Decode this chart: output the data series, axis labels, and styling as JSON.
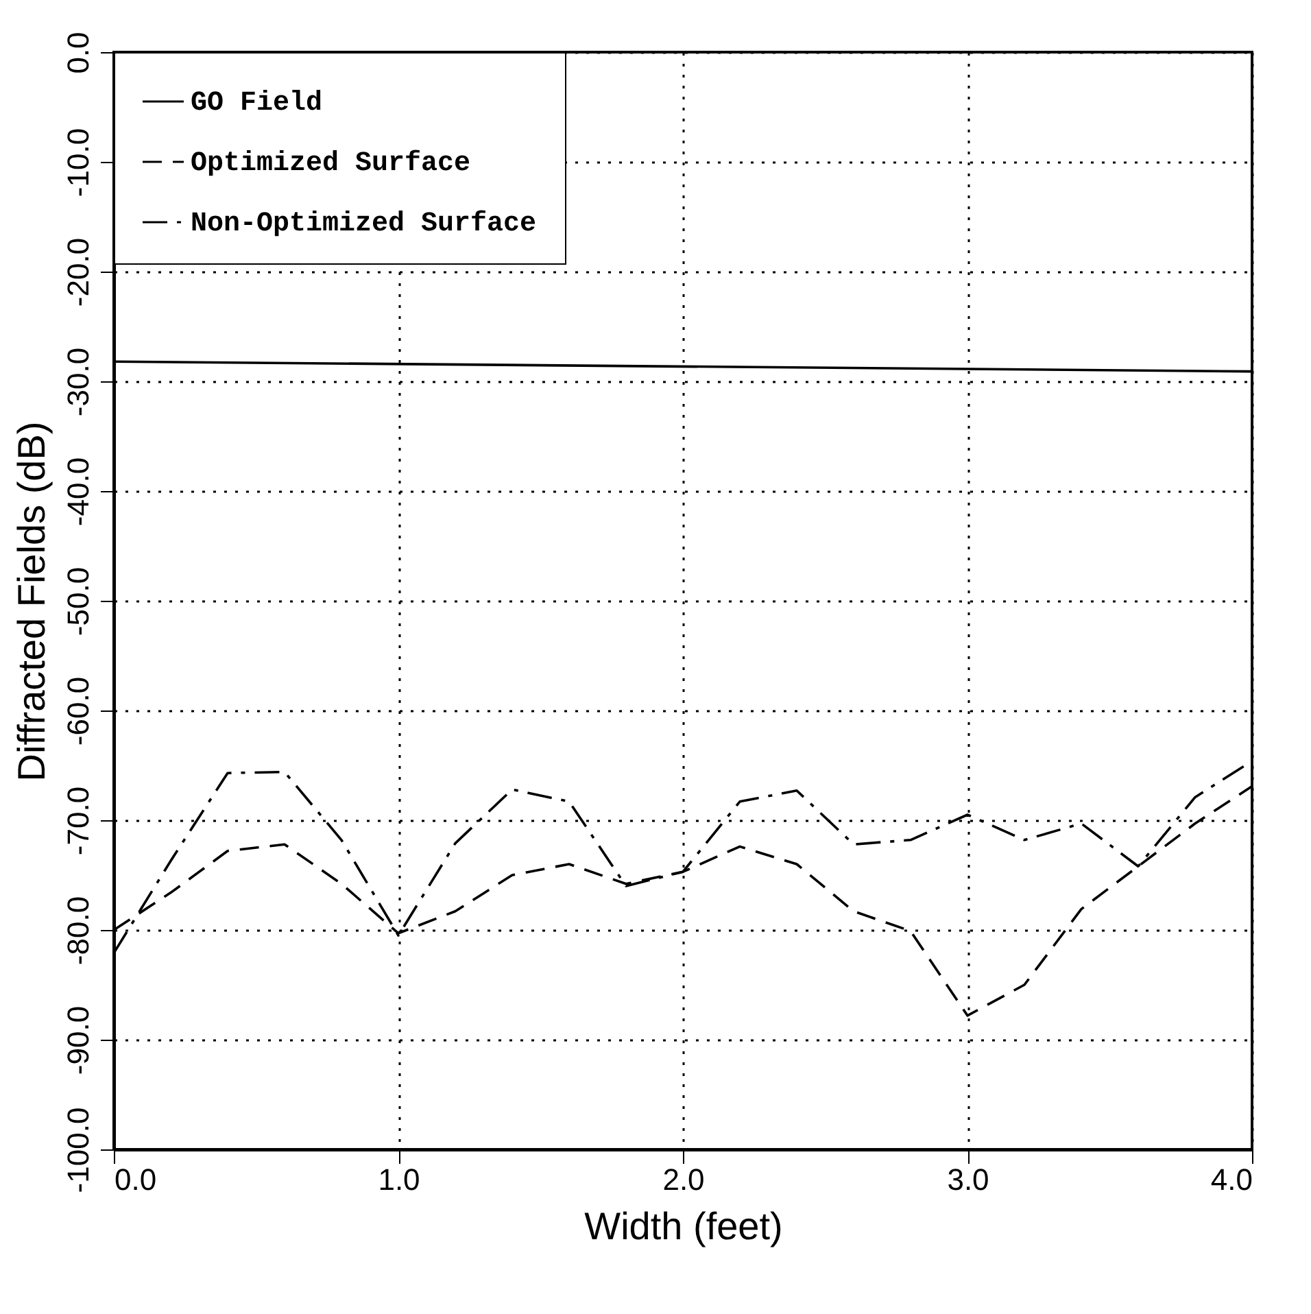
{
  "chart_data": {
    "type": "line",
    "xlabel": "Width (feet)",
    "ylabel": "Diffracted Fields (dB)",
    "x": [
      0.0,
      0.2,
      0.4,
      0.6,
      0.8,
      1.0,
      1.2,
      1.4,
      1.6,
      1.8,
      2.0,
      2.2,
      2.4,
      2.6,
      2.8,
      3.0,
      3.2,
      3.4,
      3.6,
      3.8,
      4.0
    ],
    "series": [
      {
        "name": "GO Field",
        "color": "#000000",
        "line_style": "solid",
        "x": [
          0.0,
          4.0
        ],
        "values": [
          -28.2,
          -29.1
        ]
      },
      {
        "name": "Optimized Surface",
        "color": "#000000",
        "line_style": "dashed",
        "values": [
          -80.0,
          -76.6,
          -72.8,
          -72.2,
          -75.8,
          -80.3,
          -78.3,
          -75.0,
          -74.0,
          -75.8,
          -74.7,
          -72.4,
          -74.0,
          -78.3,
          -80.1,
          -87.8,
          -85.0,
          -78.1,
          -74.2,
          -70.3,
          -66.9
        ]
      },
      {
        "name": "Non-Optimized Surface",
        "color": "#000000",
        "line_style": "dashdot",
        "values": [
          -82.1,
          -73.7,
          -65.7,
          -65.6,
          -71.8,
          -80.5,
          -72.1,
          -67.2,
          -68.3,
          -76.0,
          -74.7,
          -68.3,
          -67.3,
          -72.2,
          -71.8,
          -69.5,
          -71.8,
          -70.3,
          -74.2,
          -67.9,
          -64.6
        ]
      }
    ],
    "xlim": [
      0,
      4
    ],
    "xticks": [
      {
        "value": 0,
        "label": "0.0"
      },
      {
        "value": 1,
        "label": "1.0"
      },
      {
        "value": 2,
        "label": "2.0"
      },
      {
        "value": 3,
        "label": "3.0"
      },
      {
        "value": 4,
        "label": "4.0"
      }
    ],
    "ylim": [
      -100,
      0
    ],
    "yticks": [
      {
        "value": -100,
        "label": "-100.0"
      },
      {
        "value": -90,
        "label": "-90.0"
      },
      {
        "value": -80,
        "label": "-80.0"
      },
      {
        "value": -70,
        "label": "-70.0"
      },
      {
        "value": -60,
        "label": "-60.0"
      },
      {
        "value": -50,
        "label": "-50.0"
      },
      {
        "value": -40,
        "label": "-40.0"
      },
      {
        "value": -30,
        "label": "-30.0"
      },
      {
        "value": -20,
        "label": "-20.0"
      },
      {
        "value": -10,
        "label": "-10.0"
      },
      {
        "value": 0,
        "label": "0.0"
      }
    ],
    "grid": true,
    "legend": "top left"
  }
}
